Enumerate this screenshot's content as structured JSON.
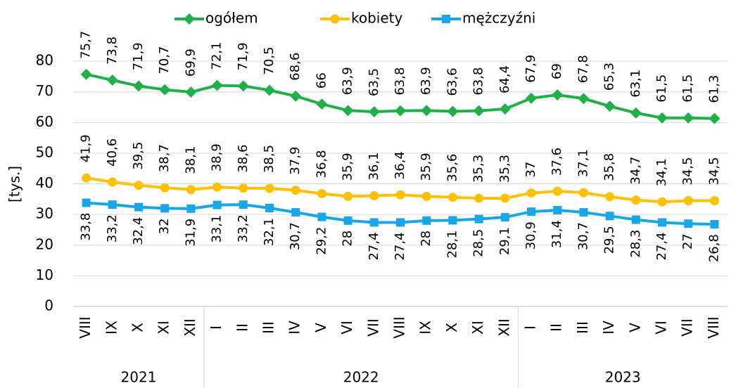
{
  "chart_data": {
    "type": "line",
    "y_label": "[tys.]",
    "categories": [
      "VIII",
      "IX",
      "X",
      "XI",
      "XII",
      "I",
      "II",
      "III",
      "IV",
      "V",
      "VI",
      "VII",
      "VIII",
      "IX",
      "X",
      "XI",
      "XII",
      "I",
      "II",
      "III",
      "IV",
      "V",
      "VI",
      "VII",
      "VIII"
    ],
    "year_groups": [
      {
        "label": "2021",
        "count": 5
      },
      {
        "label": "2022",
        "count": 12
      },
      {
        "label": "2023",
        "count": 8
      }
    ],
    "ylim": [
      0,
      80
    ],
    "yticks": [
      0,
      10,
      20,
      30,
      40,
      50,
      60,
      70,
      80
    ],
    "grid": true,
    "legend": "top",
    "series": [
      {
        "name": "ogółem",
        "color": "#1fb04a",
        "marker": "diamond",
        "label_side": "above",
        "values": [
          75.7,
          73.8,
          71.9,
          70.7,
          69.9,
          72.1,
          71.9,
          70.5,
          68.6,
          66,
          63.9,
          63.5,
          63.8,
          63.9,
          63.6,
          63.8,
          64.4,
          67.9,
          69,
          67.8,
          65.3,
          63.1,
          61.5,
          61.5,
          61.3
        ],
        "value_labels": [
          "75,7",
          "73,8",
          "71,9",
          "70,7",
          "69,9",
          "72,1",
          "71,9",
          "70,5",
          "68,6",
          "66",
          "63,9",
          "63,5",
          "63,8",
          "63,9",
          "63,6",
          "63,8",
          "64,4",
          "67,9",
          "69",
          "67,8",
          "65,3",
          "63,1",
          "61,5",
          "61,5",
          "61,3"
        ]
      },
      {
        "name": "kobiety",
        "color": "#ffc000",
        "marker": "circle",
        "label_side": "above",
        "values": [
          41.9,
          40.6,
          39.5,
          38.7,
          38.1,
          38.9,
          38.6,
          38.5,
          37.9,
          36.8,
          35.9,
          36.1,
          36.4,
          35.9,
          35.6,
          35.3,
          35.3,
          37,
          37.6,
          37.1,
          35.8,
          34.7,
          34.1,
          34.5,
          34.5
        ],
        "value_labels": [
          "41,9",
          "40,6",
          "39,5",
          "38,7",
          "38,1",
          "38,9",
          "38,6",
          "38,5",
          "37,9",
          "36,8",
          "35,9",
          "36,1",
          "36,4",
          "35,9",
          "35,6",
          "35,3",
          "35,3",
          "37",
          "37,6",
          "37,1",
          "35,8",
          "34,7",
          "34,1",
          "34,5",
          "34,5"
        ]
      },
      {
        "name": "mężczyźni",
        "color": "#19a6e6",
        "marker": "square",
        "label_side": "below",
        "values": [
          33.8,
          33.2,
          32.4,
          32,
          31.9,
          33.1,
          33.2,
          32.1,
          30.7,
          29.2,
          28,
          27.4,
          27.4,
          28,
          28.1,
          28.5,
          29.1,
          30.9,
          31.4,
          30.7,
          29.5,
          28.3,
          27.4,
          27,
          26.8
        ],
        "value_labels": [
          "33,8",
          "33,2",
          "32,4",
          "32",
          "31,9",
          "33,1",
          "33,2",
          "32,1",
          "30,7",
          "29,2",
          "28",
          "27,4",
          "27,4",
          "28",
          "28,1",
          "28,5",
          "29,1",
          "30,9",
          "31,4",
          "30,7",
          "29,5",
          "28,3",
          "27,4",
          "27",
          "26,8"
        ]
      }
    ]
  }
}
